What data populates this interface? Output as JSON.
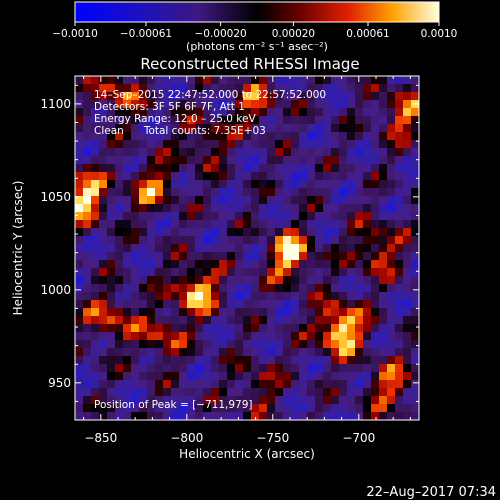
{
  "chart_data": {
    "type": "heatmap",
    "title": "Reconstructed RHESSI Image",
    "xlabel": "Heliocentric X (arcsec)",
    "ylabel": "Heliocentric Y (arcsec)",
    "xlim": [
      -865,
      -665
    ],
    "ylim": [
      930,
      1115
    ],
    "x_ticks": [
      -850,
      -800,
      -750,
      -700
    ],
    "y_ticks": [
      950,
      1000,
      1050,
      1100
    ],
    "x_tick_labels": [
      "−850",
      "−800",
      "−750",
      "−700"
    ],
    "y_tick_labels": [
      "950",
      "1000",
      "1050",
      "1100"
    ],
    "colorbar": {
      "range": [
        -0.001,
        0.001
      ],
      "ticks": [
        -0.001,
        -0.00061,
        -0.0002,
        0.0002,
        0.00061,
        0.001
      ],
      "tick_labels": [
        "−0.0010",
        "−0.00061",
        "−0.00020",
        "0.00020",
        "0.00061",
        "0.0010"
      ],
      "unit_label": "(photons cm⁻² s⁻¹ asec⁻²)"
    },
    "annotations": [
      "14–Sep–2015 22:47:52.000 to 22:57:52.000",
      "Detectors: 3F 5F 6F 7F, Att 1",
      "Energy Range: 12.0 – 25.0 keV",
      "Clean      Total counts: 7.35E+03"
    ],
    "position_label": "Position of Peak = [−711,979]",
    "grid": false,
    "hot_spots": [
      {
        "x": -711,
        "y": 979,
        "intensity": 1.0
      },
      {
        "x": -860,
        "y": 1050,
        "intensity": 0.85
      },
      {
        "x": -795,
        "y": 1000,
        "intensity": 0.8
      },
      {
        "x": -740,
        "y": 1018,
        "intensity": 0.8
      },
      {
        "x": -690,
        "y": 1022,
        "intensity": 0.6
      },
      {
        "x": -820,
        "y": 1055,
        "intensity": 0.55
      },
      {
        "x": -675,
        "y": 1095,
        "intensity": 0.6
      },
      {
        "x": -840,
        "y": 1105,
        "intensity": 0.55
      },
      {
        "x": -760,
        "y": 1100,
        "intensity": 0.5
      },
      {
        "x": -815,
        "y": 975,
        "intensity": 0.5
      },
      {
        "x": -845,
        "y": 985,
        "intensity": 0.55
      },
      {
        "x": -682,
        "y": 948,
        "intensity": 0.55
      },
      {
        "x": -760,
        "y": 948,
        "intensity": 0.4
      },
      {
        "x": -790,
        "y": 1080,
        "intensity": 0.45
      }
    ]
  },
  "footer": {
    "date": "22–Aug–2017 07:34"
  }
}
